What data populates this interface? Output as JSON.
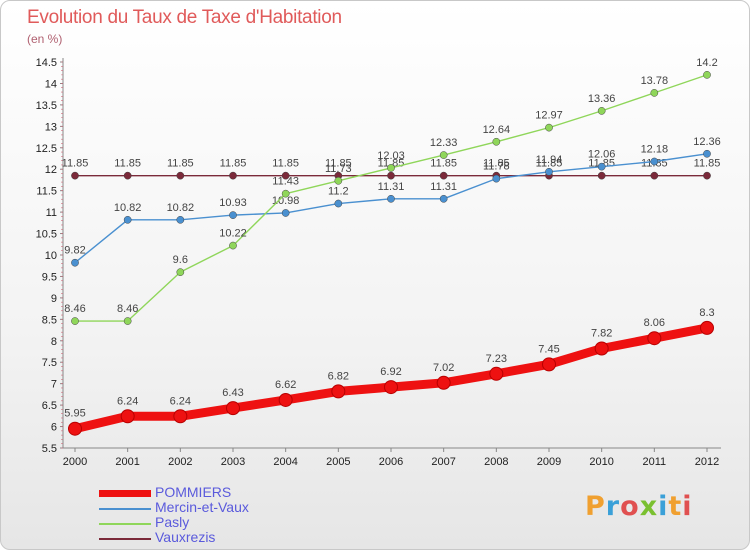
{
  "title": "Evolution du Taux de Taxe d'Habitation",
  "subtitle": "(en %)",
  "logo_text": "Proxiti",
  "logo_colors": [
    "#f0a030",
    "#3aa0d8",
    "#e05050",
    "#7ac030",
    "#3aa0d8",
    "#f0a030",
    "#e05050"
  ],
  "chart_data": {
    "type": "line",
    "x": [
      "2000",
      "2001",
      "2002",
      "2003",
      "2004",
      "2005",
      "2006",
      "2007",
      "2008",
      "2009",
      "2010",
      "2011",
      "2012"
    ],
    "ylim": [
      5.5,
      14.5
    ],
    "yticks": [
      "5.5",
      "6",
      "6.5",
      "7",
      "7.5",
      "8",
      "8.5",
      "9",
      "9.5",
      "10",
      "10.5",
      "11",
      "11.5",
      "12",
      "12.5",
      "13",
      "13.5",
      "14",
      "14.5"
    ],
    "grid": false,
    "legend_position": "bottom-left",
    "series": [
      {
        "name": "Vauxrezis",
        "color": "#7b2a3a",
        "values": [
          11.85,
          11.85,
          11.85,
          11.85,
          11.85,
          11.85,
          11.85,
          11.85,
          11.85,
          11.85,
          11.85,
          11.85,
          11.85
        ],
        "labels": [
          "11.85",
          "11.85",
          "11.85",
          "11.85",
          "11.85",
          "11.85",
          "11.85",
          "11.85",
          "11.85",
          "11.85",
          "11.85",
          "11.85",
          "11.85"
        ]
      },
      {
        "name": "Mercin-et-Vaux",
        "color": "#4a90d0",
        "values": [
          9.82,
          10.82,
          10.82,
          10.93,
          10.98,
          11.2,
          11.31,
          11.31,
          11.78,
          11.94,
          12.06,
          12.18,
          12.36
        ],
        "labels": [
          "9.82",
          "10.82",
          "10.82",
          "10.93",
          "10.98",
          "11.2",
          "11.31",
          "11.31",
          "11.78",
          "11.94",
          "12.06",
          "12.18",
          "12.36"
        ]
      },
      {
        "name": "Pasly",
        "color": "#8fd65a",
        "values": [
          8.46,
          8.46,
          9.6,
          10.22,
          11.43,
          11.73,
          12.03,
          12.33,
          12.64,
          12.97,
          13.36,
          13.78,
          14.2
        ],
        "labels": [
          "8.46",
          "8.46",
          "9.6",
          "10.22",
          "11.43",
          "11.73",
          "12.03",
          "12.33",
          "12.64",
          "12.97",
          "13.36",
          "13.78",
          "14.2"
        ]
      },
      {
        "name": "POMMIERS",
        "color": "#ee1111",
        "values": [
          5.95,
          6.24,
          6.24,
          6.43,
          6.62,
          6.82,
          6.92,
          7.02,
          7.23,
          7.45,
          7.82,
          8.06,
          8.3
        ],
        "labels": [
          "5.95",
          "6.24",
          "6.24",
          "6.43",
          "6.62",
          "6.82",
          "6.92",
          "7.02",
          "7.23",
          "7.45",
          "7.82",
          "8.06",
          "8.3"
        ]
      }
    ],
    "legend": [
      "POMMIERS",
      "Mercin-et-Vaux",
      "Pasly",
      "Vauxrezis"
    ]
  }
}
